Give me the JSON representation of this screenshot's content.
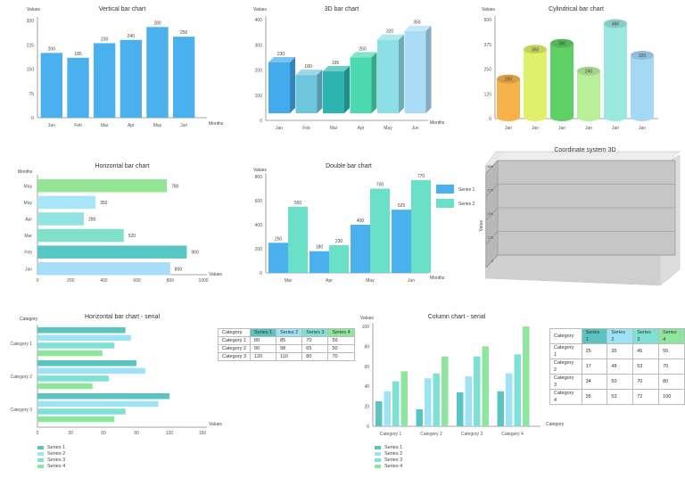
{
  "colors": {
    "blue": "#4ab0ee",
    "axis": "#888888",
    "grid": "#d8d8d8",
    "s1": "#5bc4c0",
    "s2": "#9de3f5",
    "s3": "#7fe0d6",
    "s4": "#8ee69e",
    "panel": "#c4c4c4"
  },
  "chart_data": [
    {
      "id": "vertical",
      "type": "bar",
      "title": "Vertical bar chart",
      "ylabel": "Values",
      "xlabel": "Months",
      "categories": [
        "Jan",
        "Feb",
        "Mar",
        "Apr",
        "May",
        "Jun"
      ],
      "values": [
        200,
        185,
        230,
        240,
        280,
        250
      ],
      "ylim": [
        0,
        300
      ],
      "yticks": [
        0,
        75,
        150,
        225,
        300
      ]
    },
    {
      "id": "bar3d",
      "type": "bar",
      "title": "3D bar chart",
      "ylabel": "Values",
      "xlabel": "Months",
      "categories": [
        "Jan",
        "Feb",
        "Mar",
        "Apr",
        "May",
        "Jun"
      ],
      "values": [
        230,
        180,
        195,
        250,
        320,
        355
      ],
      "colors": [
        "#43aaed",
        "#6ec6dc",
        "#2eb4b0",
        "#4cd9b0",
        "#8cdfe6",
        "#aadcf8"
      ],
      "ylim": [
        0,
        400
      ],
      "yticks": [
        0,
        100,
        200,
        300,
        400
      ]
    },
    {
      "id": "cylindrical",
      "type": "bar",
      "title": "Cylindrical bar chart",
      "ylabel": "Values",
      "categories": [
        "Jan",
        "Jan",
        "Jan",
        "Jan",
        "Jan",
        "Jan"
      ],
      "values": [
        200,
        350,
        380,
        240,
        480,
        320
      ],
      "colors": [
        "#f7b24a",
        "#dff06a",
        "#5ed065",
        "#b8f09a",
        "#9be8e0",
        "#a5d8f5"
      ],
      "ylim": [
        0,
        500
      ],
      "yticks": [
        0,
        125,
        250,
        375,
        500
      ]
    },
    {
      "id": "horizontal",
      "type": "bar",
      "title": "Horizontal bar chart",
      "ylabel": "Months",
      "xlabel": "Values",
      "categories": [
        "May",
        "May",
        "Apr",
        "Mar",
        "Feb",
        "Jan"
      ],
      "values": [
        780,
        350,
        280,
        520,
        900,
        800
      ],
      "colors": [
        "#93e494",
        "#a8e5f8",
        "#93e3e2",
        "#7fe0cc",
        "#58c6c2",
        "#a8dcf8"
      ],
      "xlim": [
        0,
        1000
      ],
      "xticks": [
        0,
        200,
        400,
        600,
        800,
        1000
      ]
    },
    {
      "id": "double",
      "type": "bar",
      "title": "Double bar chart",
      "ylabel": "Values",
      "xlabel": "Months",
      "categories": [
        "Mar",
        "Apr",
        "May",
        "Jun"
      ],
      "series": [
        {
          "name": "Series 1",
          "values": [
            250,
            180,
            400,
            525
          ]
        },
        {
          "name": "Series 2",
          "values": [
            550,
            230,
            700,
            770
          ]
        }
      ],
      "ylim": [
        0,
        800
      ],
      "yticks": [
        0,
        200,
        400,
        600,
        800
      ],
      "series_colors": [
        "#4ab0ee",
        "#6ae0c8"
      ]
    },
    {
      "id": "coord3d",
      "type": "bar",
      "title": "Coordinate system 3D",
      "ylabel": "Value",
      "ylim": [
        0,
        500
      ],
      "yticks": [
        0,
        125,
        250,
        375,
        500
      ]
    },
    {
      "id": "hserial",
      "type": "bar",
      "title": "Horizontal bar chart - serial",
      "ylabel": "Category",
      "xlabel": "Values",
      "categories": [
        "Category 1",
        "Category 2",
        "Category 3"
      ],
      "series": [
        {
          "name": "Series 1",
          "values": [
            80,
            90,
            120
          ]
        },
        {
          "name": "Series 2",
          "values": [
            85,
            98,
            110
          ]
        },
        {
          "name": "Series 3",
          "values": [
            70,
            65,
            80
          ]
        },
        {
          "name": "Series 4",
          "values": [
            59,
            50,
            70
          ]
        }
      ],
      "xlim": [
        0,
        150
      ],
      "xticks": [
        0,
        30,
        60,
        90,
        120,
        150
      ],
      "legend": "bottom-left"
    },
    {
      "id": "column",
      "type": "bar",
      "title": "Column chart - serial",
      "ylabel": "Values",
      "xlabel": "Category",
      "categories": [
        "Category 1",
        "Category 2",
        "Category 3",
        "Category 4"
      ],
      "series": [
        {
          "name": "Series 1",
          "values": [
            25,
            17,
            34,
            35
          ]
        },
        {
          "name": "Series 2",
          "values": [
            35,
            48,
            50,
            53
          ]
        },
        {
          "name": "Series 3",
          "values": [
            45,
            53,
            70,
            72
          ]
        },
        {
          "name": "Series 4",
          "values": [
            55,
            70,
            80,
            100
          ]
        }
      ],
      "ylim": [
        0,
        100
      ],
      "yticks": [
        0,
        20,
        40,
        60,
        80,
        100
      ],
      "legend": "bottom-left"
    }
  ],
  "tables": {
    "hserial": {
      "header": [
        "Category",
        "Series 1",
        "Series 2",
        "Series 3",
        "Series 4"
      ],
      "rows": [
        [
          "Category 1",
          "80",
          "85",
          "70",
          "59"
        ],
        [
          "Category 2",
          "90",
          "98",
          "65",
          "50"
        ],
        [
          "Category 3",
          "120",
          "110",
          "80",
          "70"
        ]
      ]
    },
    "column": {
      "header": [
        "Category",
        "Series 1",
        "Series 2",
        "Series 3",
        "Series 4"
      ],
      "rows": [
        [
          "Category 1",
          "25",
          "35",
          "45",
          "55"
        ],
        [
          "Category 2",
          "17",
          "48",
          "53",
          "70"
        ],
        [
          "Category 3",
          "34",
          "50",
          "70",
          "80"
        ],
        [
          "Category 4",
          "35",
          "53",
          "72",
          "100"
        ]
      ]
    }
  }
}
